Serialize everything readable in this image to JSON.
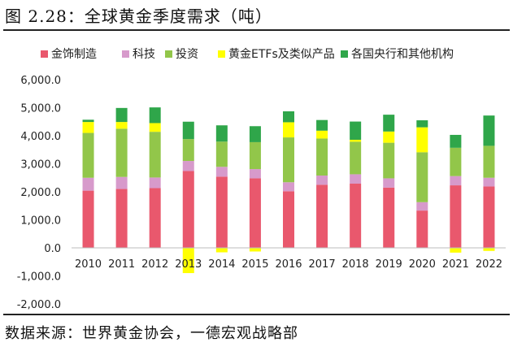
{
  "title": "图 2.28：全球黄金季度需求（吨）",
  "source": "数据来源：世界黄金协会，一德宏观战略部",
  "chart_data": {
    "type": "bar",
    "stacked": true,
    "categories": [
      "2010",
      "2011",
      "2012",
      "2013",
      "2014",
      "2015",
      "2016",
      "2017",
      "2018",
      "2019",
      "2020",
      "2021",
      "2022"
    ],
    "ylim": [
      -2000,
      6000
    ],
    "yticks": [
      "-2,000.0",
      "-1,000.0",
      "0.0",
      "1,000.0",
      "2,000.0",
      "3,000.0",
      "4,000.0",
      "5,000.0",
      "6,000.0"
    ],
    "ytick_values": [
      -2000,
      -1000,
      0,
      1000,
      2000,
      3000,
      4000,
      5000,
      6000
    ],
    "legend_position": "top",
    "series": [
      {
        "name": "金饰制造",
        "color": "#E9586D",
        "values": [
          2040,
          2100,
          2130,
          2740,
          2540,
          2480,
          2020,
          2250,
          2290,
          2150,
          1330,
          2230,
          2190
        ]
      },
      {
        "name": "科技",
        "color": "#D79ACB",
        "values": [
          460,
          430,
          380,
          360,
          350,
          330,
          320,
          330,
          335,
          330,
          300,
          330,
          310
        ]
      },
      {
        "name": "投资",
        "color": "#92C64A",
        "values": [
          1600,
          1720,
          1630,
          780,
          900,
          960,
          1600,
          1320,
          1160,
          1270,
          1780,
          1010,
          1140
        ]
      },
      {
        "name": "黄金ETFs及类似产品",
        "color": "#FFFF00",
        "values": [
          390,
          240,
          310,
          -900,
          -160,
          -130,
          540,
          280,
          70,
          400,
          890,
          -170,
          -110
        ]
      },
      {
        "name": "各国央行和其他机构",
        "color": "#2FA64A",
        "values": [
          80,
          500,
          560,
          620,
          580,
          570,
          390,
          380,
          650,
          600,
          250,
          460,
          1080
        ]
      }
    ]
  }
}
